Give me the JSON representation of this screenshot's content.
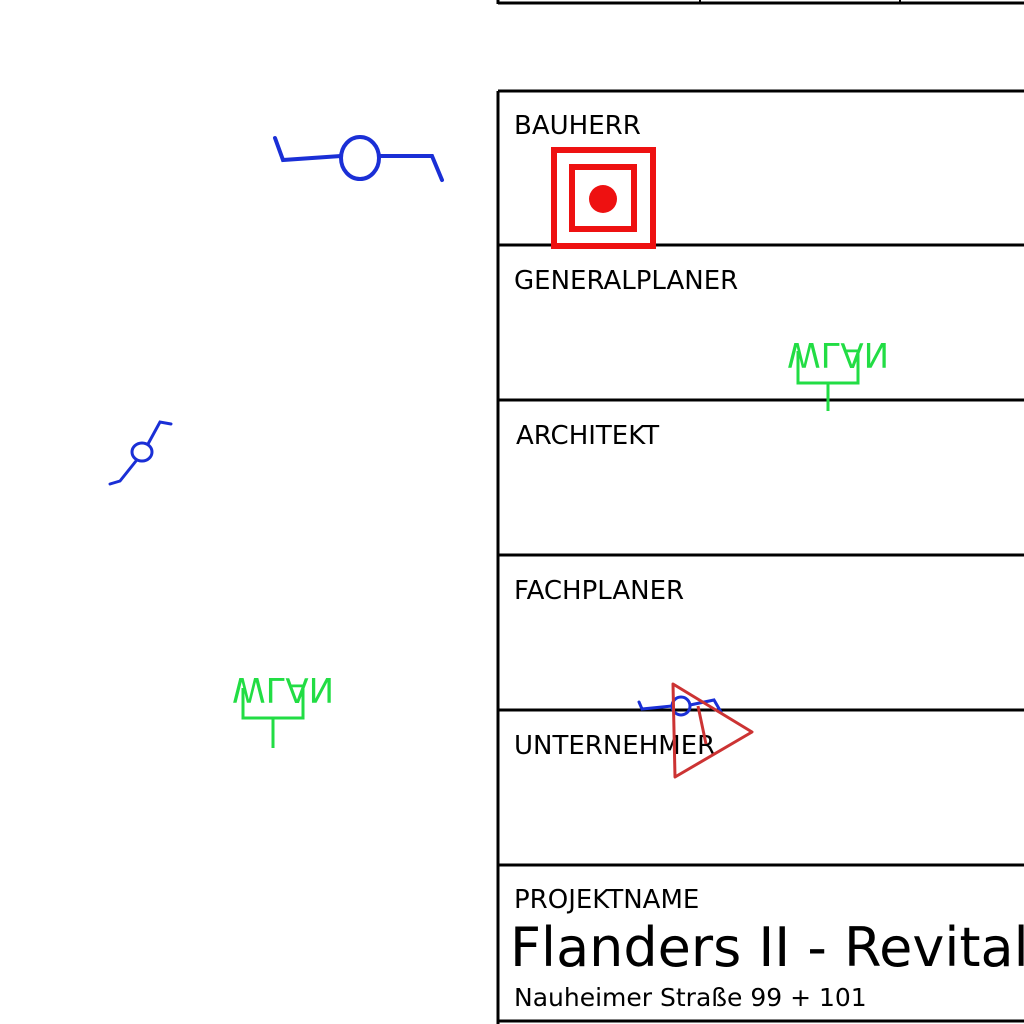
{
  "title_block": {
    "fields": {
      "bauherr": "BAUHERR",
      "generalplaner": "GENERALPLANER",
      "architekt": "ARCHITEKT",
      "fachplaner": "FACHPLANER",
      "unternehmer": "UNTERNEHMER",
      "projektname": "PROJEKTNAME"
    },
    "project_title": "Flanders II - Revitali",
    "project_address": "Nauheimer Straße 99 + 101"
  },
  "symbols": {
    "wlan_label": "WLAN",
    "colors": {
      "wlan": "#22dd44",
      "switch": "#1a2fd6",
      "alarm": "#ee1111",
      "triangle": "#cc3333",
      "frame": "#000000"
    },
    "icons": [
      "switch-symbol-icon",
      "wlan-access-point-icon",
      "fire-alarm-button-icon",
      "triangle-marker-icon"
    ]
  }
}
